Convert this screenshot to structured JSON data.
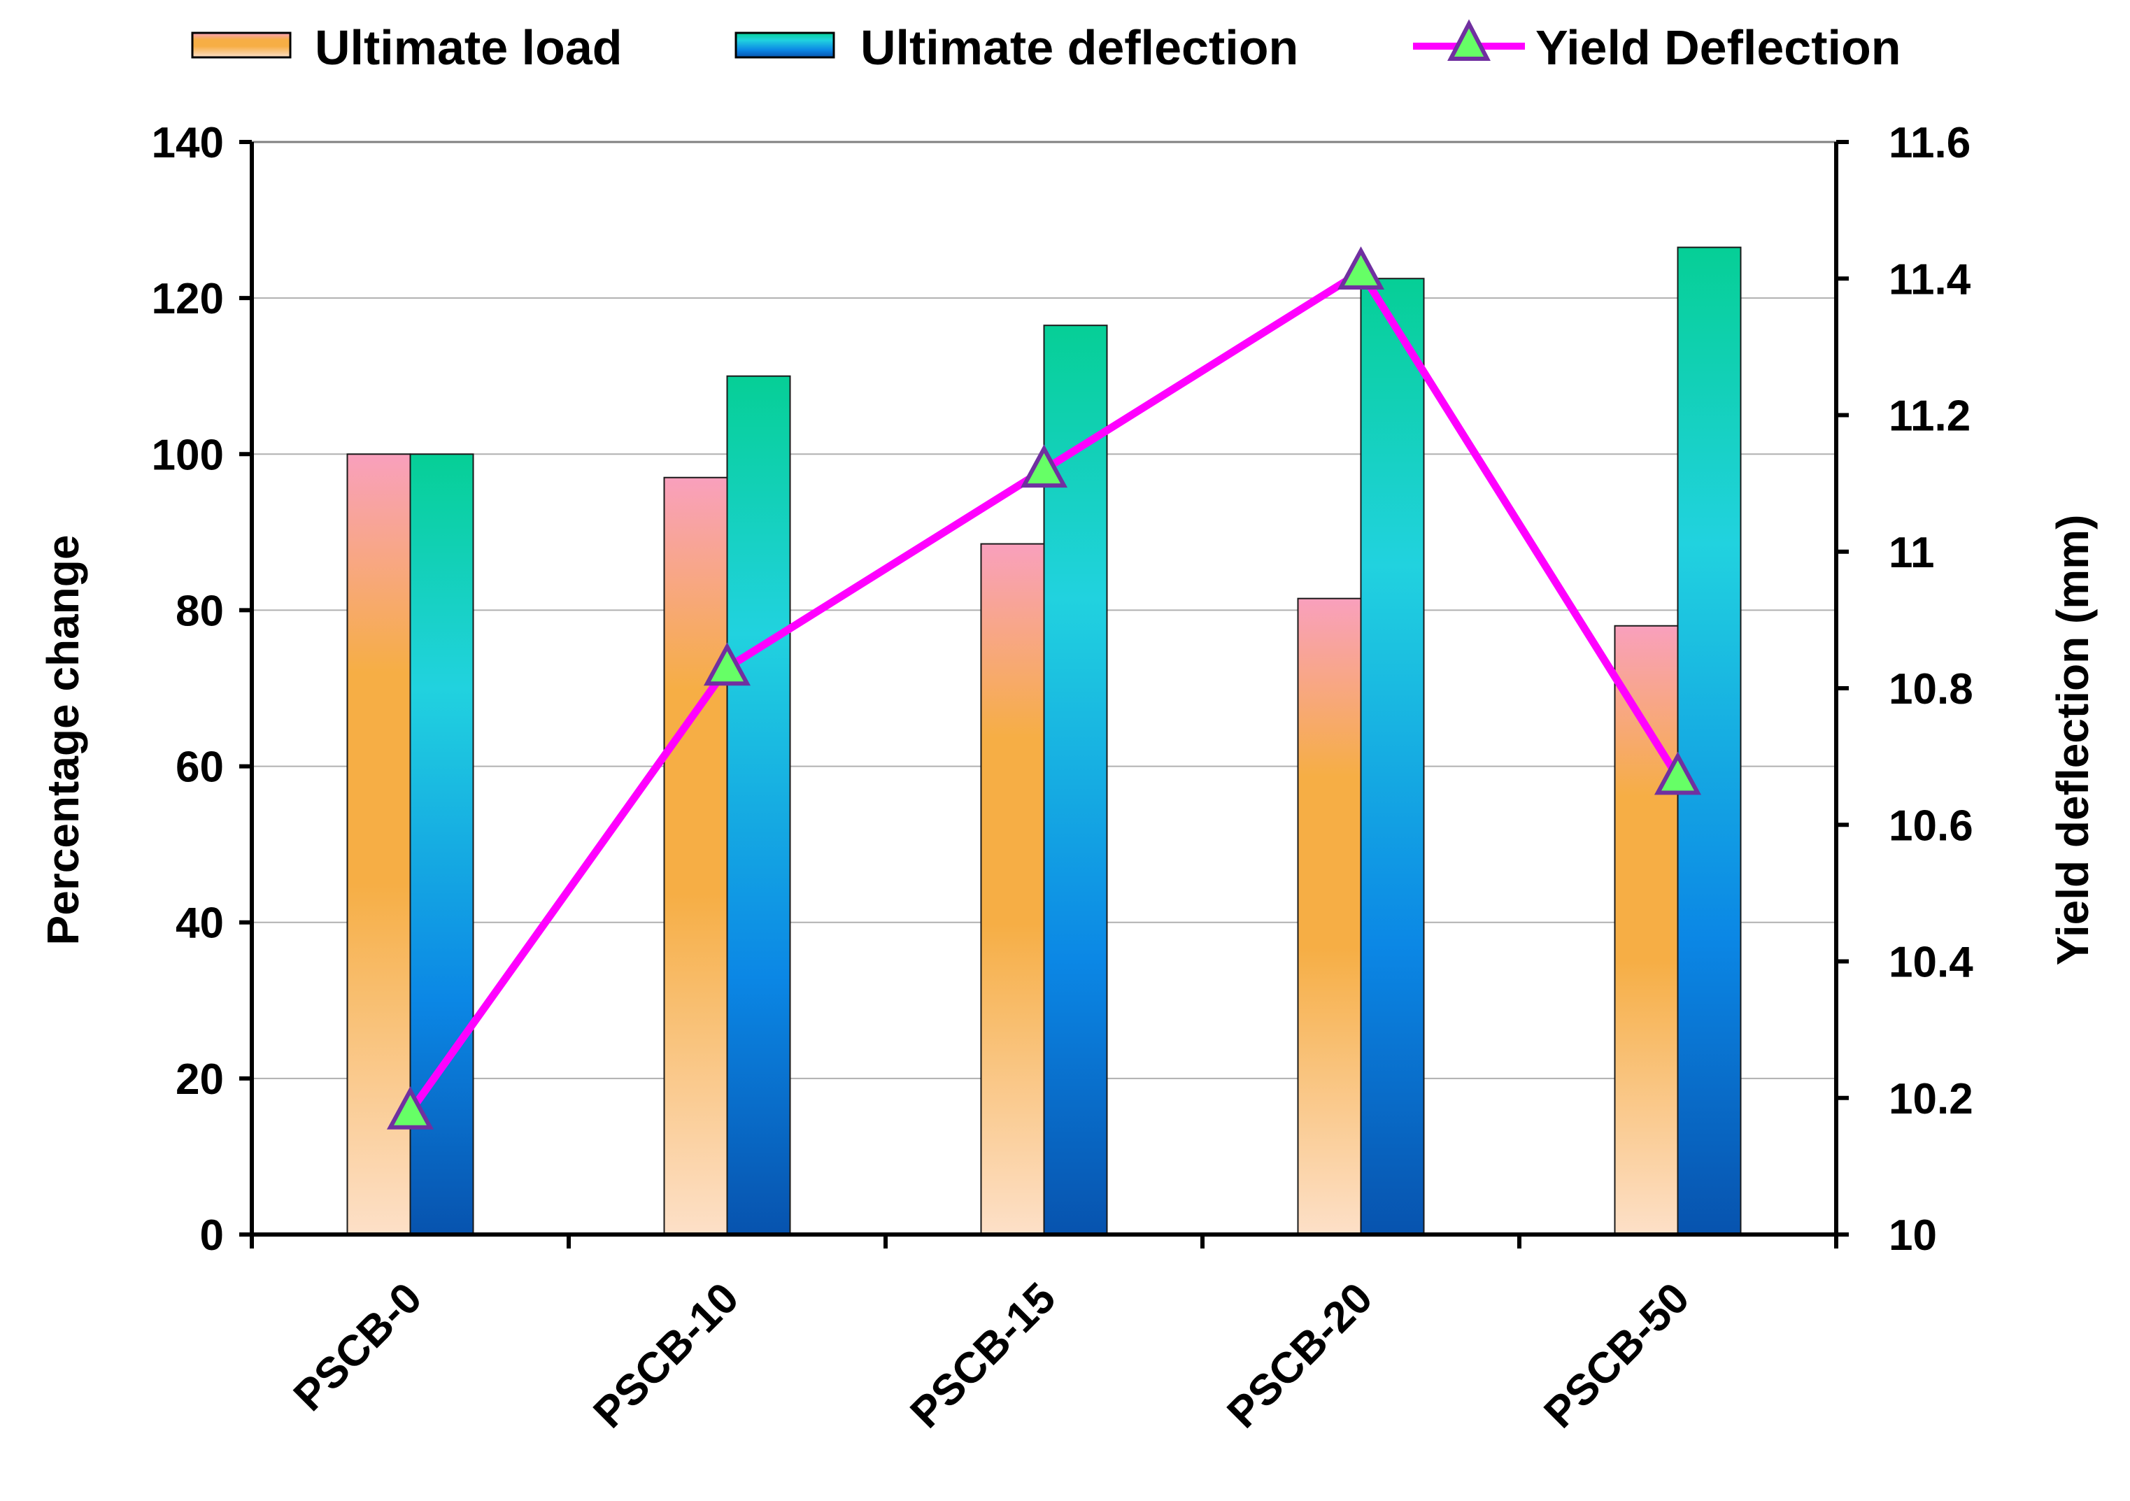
{
  "chart_data": {
    "type": "bar",
    "title": "",
    "categories": [
      "PSCB-0",
      "PSCB-10",
      "PSCB-15",
      "PSCB-20",
      "PSCB-50"
    ],
    "series": [
      {
        "name": "Ultimate load",
        "kind": "bar",
        "axis": "left",
        "values": [
          100,
          97,
          88.5,
          81.5,
          78
        ]
      },
      {
        "name": "Ultimate deflection",
        "kind": "bar",
        "axis": "left",
        "values": [
          100,
          110,
          116.5,
          122.5,
          126.5
        ]
      },
      {
        "name": "Yield Deflection",
        "kind": "line",
        "axis": "right",
        "values": [
          10.18,
          10.83,
          11.12,
          11.41,
          10.67
        ]
      }
    ],
    "ylabel": "Percentage change",
    "ylim": [
      0,
      140
    ],
    "yticks": [
      "0",
      "20",
      "40",
      "60",
      "80",
      "100",
      "120",
      "140"
    ],
    "y2label": "Yield deflection (mm)",
    "y2lim": [
      10,
      11.6
    ],
    "y2ticks": [
      "10",
      "10.2",
      "10.4",
      "10.6",
      "10.8",
      "11",
      "11.2",
      "11.4",
      "11.6"
    ],
    "grid": true,
    "legend_position": "top",
    "colors": {
      "ultimate_load": [
        "#fbd9bb",
        "#f6ad45",
        "#f9a3b8"
      ],
      "ultimate_deflection": [
        "#0857b5",
        "#0a8ae0",
        "#22d0e0",
        "#07cf98"
      ],
      "yield_line": "#ff00ff",
      "yield_marker_fill": "#66ff66",
      "yield_marker_stroke": "#7030a0"
    }
  }
}
